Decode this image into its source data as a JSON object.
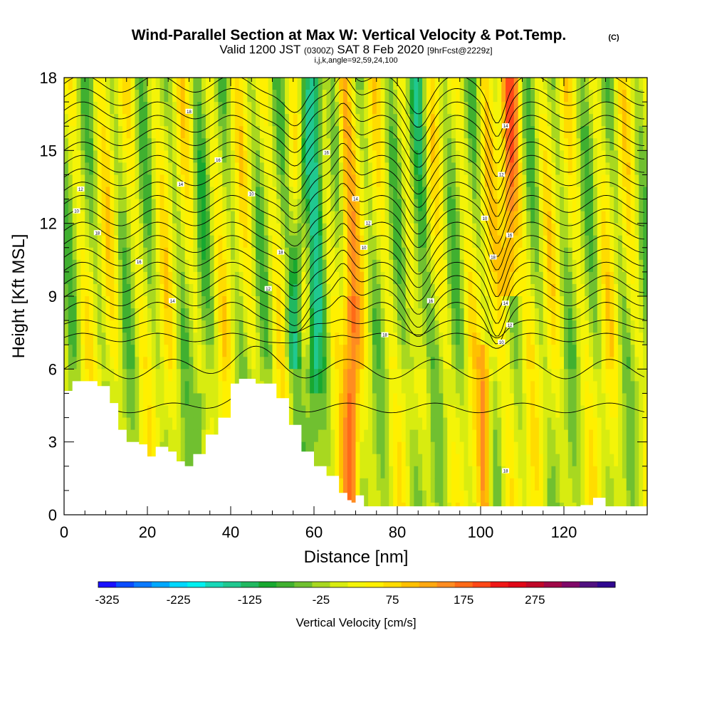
{
  "chart_data": {
    "type": "heatmap",
    "title": "Wind-Parallel Section at Max W: Vertical Velocity & Pot.Temp.",
    "title_mark": "(C)",
    "subtitle": {
      "prefix": "Valid 1200 JST",
      "utc": "(0300Z)",
      "date": "SAT 8 Feb 2020",
      "forecast": "[9hrFcst@2229z]"
    },
    "subtitle2": "i,j,k,angle=92,59,24,100",
    "xlabel": "Distance [nm]",
    "ylabel": "Height [Kft MSL]",
    "xlim": [
      0,
      140
    ],
    "ylim": [
      0,
      18
    ],
    "x_ticks": [
      0,
      20,
      40,
      60,
      80,
      100,
      120
    ],
    "y_ticks": [
      0,
      3,
      6,
      9,
      12,
      15,
      18
    ],
    "colorbar": {
      "label": "Vertical Velocity [cm/s]",
      "tick_labels": [
        "-325",
        "-225",
        "-125",
        "-25",
        "75",
        "175",
        "275"
      ],
      "tick_values": [
        -325,
        -225,
        -125,
        -25,
        75,
        175,
        275
      ],
      "step": 25,
      "colors": [
        "#1a10ff",
        "#0a4cff",
        "#0a7aff",
        "#00a8ff",
        "#00d8ff",
        "#00f0f0",
        "#18d8b8",
        "#20c890",
        "#20b860",
        "#18a830",
        "#40b030",
        "#70c030",
        "#a8d820",
        "#d8ec10",
        "#f4f408",
        "#fff000",
        "#ffdc00",
        "#ffc000",
        "#ffa810",
        "#ff8c20",
        "#ff6a18",
        "#ff4818",
        "#f01818",
        "#e00818",
        "#c00828",
        "#a00848",
        "#800868",
        "#501080",
        "#300890"
      ]
    },
    "updraft_columns": [
      {
        "x": 60,
        "value": -120
      },
      {
        "x": 66,
        "value": 80
      },
      {
        "x": 69,
        "value": 160
      },
      {
        "x": 107,
        "value": 180
      }
    ],
    "terrain_profile": {
      "x": [
        0,
        2,
        5,
        8,
        11,
        13,
        15,
        18,
        20,
        22,
        25,
        27,
        29,
        31,
        34,
        37,
        40,
        42,
        46,
        51,
        54,
        57,
        60,
        63,
        66,
        68,
        69,
        70,
        72,
        100,
        124,
        127,
        130,
        140
      ],
      "height": [
        5.1,
        5.5,
        5.5,
        5.3,
        4.6,
        3.5,
        3.0,
        2.9,
        2.4,
        2.8,
        2.6,
        2.2,
        2.0,
        2.5,
        3.3,
        4.0,
        5.4,
        5.6,
        5.4,
        4.8,
        3.7,
        2.6,
        2.0,
        1.6,
        0.9,
        0.6,
        0.5,
        0.8,
        0.35,
        0.35,
        0.4,
        0.7,
        0.35,
        0.35
      ]
    },
    "isentrope_labels": [
      "18",
      "16",
      "14",
      "12",
      "10"
    ]
  }
}
